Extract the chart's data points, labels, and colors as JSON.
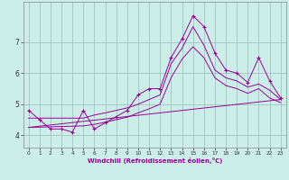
{
  "bg_color": "#cceee8",
  "line_color": "#990099",
  "grid_color": "#9bbbb8",
  "xlabel": "Windchill (Refroidissement éolien,°C)",
  "x_ticks": [
    0,
    1,
    2,
    3,
    4,
    5,
    6,
    7,
    8,
    9,
    10,
    11,
    12,
    13,
    14,
    15,
    16,
    17,
    18,
    19,
    20,
    21,
    22,
    23
  ],
  "y_ticks": [
    4,
    5,
    6,
    7
  ],
  "ylim": [
    3.6,
    8.3
  ],
  "xlim": [
    -0.5,
    23.5
  ],
  "series1_x": [
    0,
    1,
    2,
    3,
    4,
    5,
    6,
    7,
    8,
    9,
    10,
    11,
    12,
    13,
    14,
    15,
    16,
    17,
    18,
    19,
    20,
    21,
    22,
    23
  ],
  "series1_y": [
    4.8,
    4.5,
    4.2,
    4.2,
    4.1,
    4.8,
    4.2,
    4.4,
    4.6,
    4.8,
    5.3,
    5.5,
    5.5,
    6.5,
    7.1,
    7.85,
    7.5,
    6.65,
    6.1,
    6.0,
    5.7,
    6.5,
    5.75,
    5.2
  ],
  "trend_x": [
    0,
    23
  ],
  "trend_y": [
    4.25,
    5.15
  ],
  "upper_x": [
    0,
    5,
    6,
    7,
    8,
    9,
    10,
    11,
    12,
    13,
    14,
    15,
    16,
    17,
    18,
    19,
    20,
    21,
    22,
    23
  ],
  "upper_y": [
    4.55,
    4.55,
    4.65,
    4.72,
    4.8,
    4.88,
    5.0,
    5.15,
    5.3,
    6.3,
    6.8,
    7.5,
    6.9,
    6.1,
    5.85,
    5.75,
    5.55,
    5.65,
    5.45,
    5.15
  ],
  "lower_x": [
    0,
    5,
    6,
    7,
    8,
    9,
    10,
    11,
    12,
    13,
    14,
    15,
    16,
    17,
    18,
    19,
    20,
    21,
    22,
    23
  ],
  "lower_y": [
    4.25,
    4.3,
    4.35,
    4.42,
    4.5,
    4.58,
    4.72,
    4.85,
    5.0,
    5.85,
    6.45,
    6.85,
    6.5,
    5.85,
    5.6,
    5.5,
    5.35,
    5.5,
    5.2,
    5.05
  ]
}
